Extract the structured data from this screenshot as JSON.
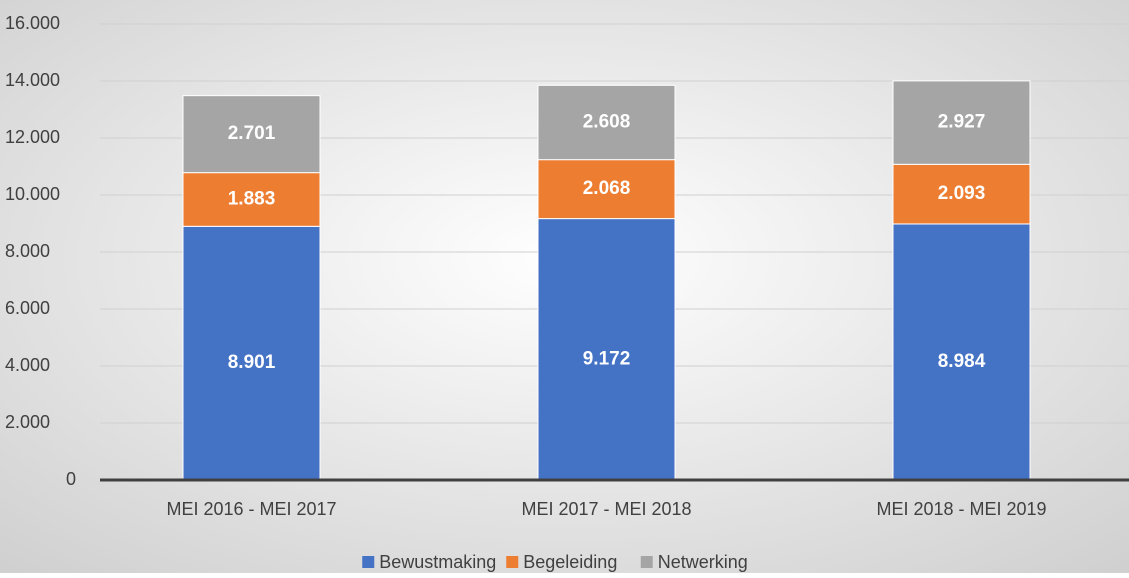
{
  "chart_data": {
    "type": "stacked_bar",
    "categories": [
      "MEI 2016 - MEI 2017",
      "MEI 2017 - MEI 2018",
      "MEI 2018 - MEI 2019"
    ],
    "series": [
      {
        "name": "Bewustmaking",
        "color": "#4472c4",
        "values": [
          8901,
          9172,
          8984
        ],
        "value_labels": [
          "8.901",
          "9.172",
          "8.984"
        ]
      },
      {
        "name": "Begeleiding",
        "color": "#ed7d31",
        "values": [
          1883,
          2068,
          2093
        ],
        "value_labels": [
          "1.883",
          "2.068",
          "2.093"
        ]
      },
      {
        "name": "Netwerking",
        "color": "#a5a5a5",
        "values": [
          2701,
          2608,
          2927
        ],
        "value_labels": [
          "2.701",
          "2.608",
          "2.927"
        ]
      }
    ],
    "ylim": [
      0,
      16000
    ],
    "yticks": [
      0,
      {
        "value": 2000,
        "label": "2.000"
      },
      {
        "value": 4000,
        "label": "4.000"
      },
      {
        "value": 6000,
        "label": "6.000"
      },
      {
        "value": 8000,
        "label": "8.000"
      },
      {
        "value": 10000,
        "label": "10.000"
      },
      {
        "value": 12000,
        "label": "12.000"
      },
      {
        "value": 14000,
        "label": "14.000"
      },
      {
        "value": 16000,
        "label": "16.000"
      }
    ],
    "grid": true,
    "legend": "bottom"
  }
}
